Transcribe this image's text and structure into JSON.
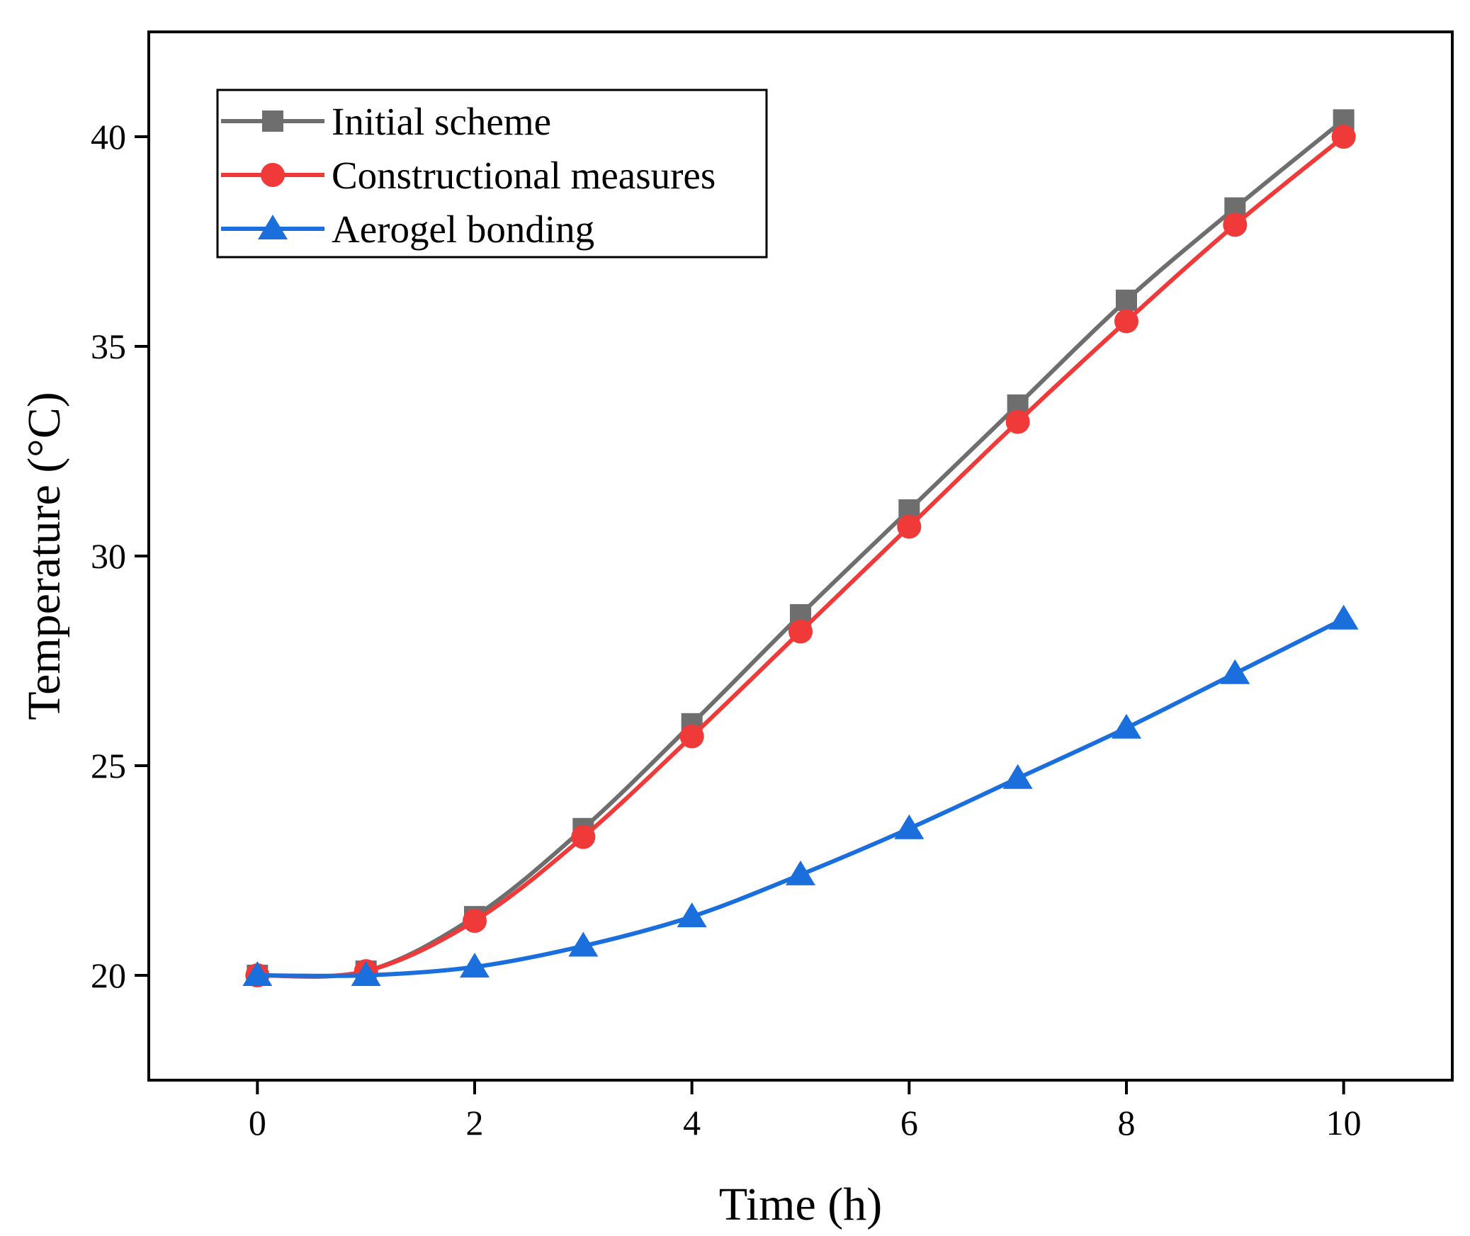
{
  "chart_data": {
    "type": "line",
    "xlabel": "Time (h)",
    "ylabel": "Temperature (°C)",
    "xlim": [
      -1,
      11
    ],
    "ylim": [
      17.5,
      42.5
    ],
    "xticks": [
      0,
      2,
      4,
      6,
      8,
      10
    ],
    "yticks": [
      20,
      25,
      30,
      35,
      40
    ],
    "grid": false,
    "legend_position": "top-left",
    "x": [
      0,
      1,
      2,
      3,
      4,
      5,
      6,
      7,
      8,
      9,
      10
    ],
    "series": [
      {
        "name": "Initial scheme",
        "marker": "square",
        "color": "#6e6e6e",
        "values": [
          20.0,
          20.1,
          21.4,
          23.5,
          26.0,
          28.6,
          31.1,
          33.6,
          36.1,
          38.3,
          40.4
        ]
      },
      {
        "name": "Constructional measures",
        "marker": "circle",
        "color": "#f03a3a",
        "values": [
          20.0,
          20.1,
          21.3,
          23.3,
          25.7,
          28.2,
          30.7,
          33.2,
          35.6,
          37.9,
          40.0
        ]
      },
      {
        "name": "Aerogel bonding",
        "marker": "triangle",
        "color": "#1a6fdc",
        "values": [
          20.0,
          20.0,
          20.2,
          20.7,
          21.4,
          22.4,
          23.5,
          24.7,
          25.9,
          27.2,
          28.5
        ]
      }
    ]
  }
}
